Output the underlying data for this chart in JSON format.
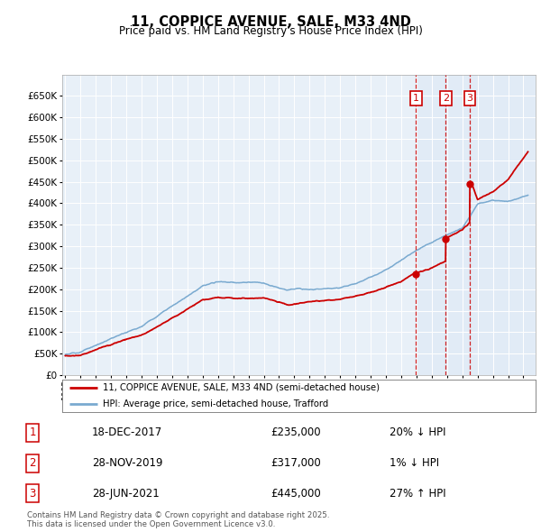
{
  "title": "11, COPPICE AVENUE, SALE, M33 4ND",
  "subtitle": "Price paid vs. HM Land Registry's House Price Index (HPI)",
  "ylim": [
    0,
    700000
  ],
  "yticks": [
    0,
    50000,
    100000,
    150000,
    200000,
    250000,
    300000,
    350000,
    400000,
    450000,
    500000,
    550000,
    600000,
    650000
  ],
  "background_color": "#e8f0f8",
  "sale_color": "#cc0000",
  "hpi_color": "#7aaad0",
  "transactions": [
    {
      "num": 1,
      "date": "18-DEC-2017",
      "price": 235000,
      "pct": "20%",
      "dir": "↓",
      "x": 2017.97
    },
    {
      "num": 2,
      "date": "28-NOV-2019",
      "price": 317000,
      "pct": "1%",
      "dir": "↓",
      "x": 2019.91
    },
    {
      "num": 3,
      "date": "28-JUN-2021",
      "price": 445000,
      "pct": "27%",
      "dir": "↑",
      "x": 2021.49
    }
  ],
  "legend_sale": "11, COPPICE AVENUE, SALE, M33 4ND (semi-detached house)",
  "legend_hpi": "HPI: Average price, semi-detached house, Trafford",
  "footer": "Contains HM Land Registry data © Crown copyright and database right 2025.\nThis data is licensed under the Open Government Licence v3.0.",
  "shaded_region_color": "#dde8f5",
  "sale_dot_color": "#cc0000"
}
